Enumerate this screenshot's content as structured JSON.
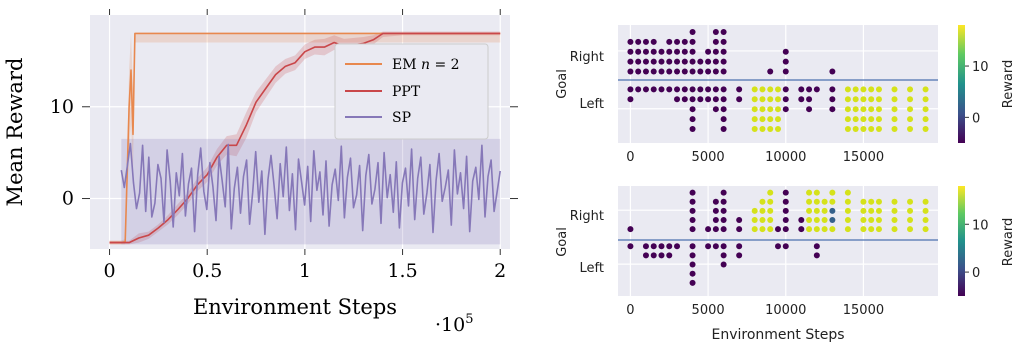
{
  "colors": {
    "panel_bg": "#eaeaf2",
    "grid": "#ffffff",
    "em": "#e8884e",
    "ppt": "#c9474a",
    "sp": "#8678b8",
    "divider": "#4c72b0",
    "viridis_low": "#440154",
    "viridis_mid": "#3b528b",
    "viridis_high": "#d5e21a"
  },
  "chart_data": [
    {
      "type": "line",
      "ylabel": "Mean Reward",
      "xlabel": "Environment Steps",
      "x_multiplier": "·10",
      "x_multiplier_exp": "5",
      "xlim": [
        -0.1,
        2.05
      ],
      "ylim": [
        -5.5,
        20
      ],
      "xticks": [
        0,
        0.5,
        1,
        1.5,
        2
      ],
      "xtick_labels": [
        "0",
        "0.5",
        "1",
        "1.5",
        "2"
      ],
      "yticks": [
        0,
        10
      ],
      "ytick_labels": [
        "0",
        "10"
      ],
      "grid": true,
      "legend_position": "center-right",
      "legend": {
        "em_prefix": "EM ",
        "em_var": "n",
        "em_suffix": " = 2",
        "ppt": "PPT",
        "sp": "SP"
      },
      "series": [
        {
          "name": "EM n = 2",
          "color": "#e8884e",
          "x": [
            0.0,
            0.06,
            0.08,
            0.1,
            0.11,
            0.12,
            0.13,
            0.14,
            0.15,
            2.0
          ],
          "y": [
            -4.8,
            -4.8,
            -4.7,
            10.0,
            14.0,
            7.0,
            18.0,
            18.0,
            18.0,
            18.0
          ],
          "band_low": [
            -5.0,
            -5.0,
            -5.0,
            5.0,
            8.0,
            3.0,
            17.0,
            17.0,
            17.0,
            17.0
          ],
          "band_high": [
            -4.6,
            -4.6,
            -4.4,
            14.0,
            18.0,
            12.0,
            18.0,
            18.0,
            18.0,
            18.0
          ]
        },
        {
          "name": "PPT",
          "color": "#c9474a",
          "x": [
            0.0,
            0.1,
            0.15,
            0.2,
            0.25,
            0.3,
            0.35,
            0.4,
            0.45,
            0.5,
            0.55,
            0.6,
            0.65,
            0.7,
            0.75,
            0.8,
            0.85,
            0.9,
            0.95,
            1.0,
            1.05,
            1.1,
            1.15,
            1.2,
            1.3,
            1.35,
            1.4,
            1.5,
            2.0
          ],
          "y": [
            -4.8,
            -4.8,
            -4.3,
            -4.0,
            -3.2,
            -2.3,
            -1.2,
            0.0,
            1.5,
            2.6,
            4.5,
            5.8,
            5.8,
            8.0,
            10.5,
            12.0,
            13.5,
            14.4,
            14.8,
            16.0,
            16.5,
            16.5,
            17.0,
            16.6,
            16.9,
            17.3,
            18.0,
            18.0,
            18.0
          ],
          "band_low": [
            -5.0,
            -5.0,
            -4.8,
            -4.4,
            -3.6,
            -2.8,
            -1.8,
            -0.6,
            0.8,
            1.8,
            3.6,
            4.8,
            4.6,
            6.6,
            9.4,
            11.0,
            12.6,
            13.6,
            14.0,
            15.2,
            15.7,
            15.6,
            16.2,
            15.8,
            16.2,
            16.8,
            17.6,
            17.8,
            17.8
          ],
          "band_high": [
            -4.6,
            -4.6,
            -3.8,
            -3.6,
            -2.8,
            -1.8,
            -0.6,
            0.6,
            2.2,
            3.4,
            5.4,
            6.8,
            7.0,
            9.4,
            11.6,
            13.0,
            14.4,
            15.2,
            15.6,
            16.8,
            17.3,
            17.4,
            17.8,
            17.4,
            17.6,
            17.8,
            18.2,
            18.2,
            18.2
          ]
        },
        {
          "name": "SP",
          "color": "#8678b8",
          "x_start": 0.06,
          "x_end": 2.0,
          "y": [
            3.1,
            1.2,
            3.6,
            6.0,
            1.7,
            -1.1,
            0.6,
            5.8,
            -1.4,
            4.5,
            -2.0,
            -0.5,
            3.7,
            2.2,
            -2.6,
            5.3,
            1.9,
            -3.1,
            2.8,
            0.3,
            4.9,
            -1.9,
            1.6,
            3.3,
            -3.6,
            2.6,
            5.5,
            0.8,
            -1.2,
            3.9,
            1.3,
            -2.4,
            4.6,
            2.0,
            -0.9,
            5.9,
            -3.3,
            1.1,
            3.4,
            -1.6,
            2.4,
            4.2,
            -2.8,
            0.7,
            5.1,
            -0.4,
            3.0,
            -3.9,
            2.1,
            4.7,
            1.4,
            -2.2,
            3.8,
            0.2,
            5.6,
            -1.3,
            2.7,
            -3.4,
            4.3,
            1.8,
            -0.7,
            3.5,
            -2.5,
            5.2,
            0.9,
            2.9,
            -1.8,
            4.1,
            -3.0,
            1.5,
            3.2,
            -0.2,
            5.7,
            -2.1,
            2.3,
            4.4,
            -1.0,
            0.4,
            3.6,
            -3.5,
            2.5,
            4.8,
            -0.6,
            1.0,
            3.9,
            -2.7,
            5.0,
            0.1,
            2.6,
            -1.5,
            4.0,
            -3.2,
            1.7,
            3.3,
            -0.8,
            5.4,
            -2.3,
            2.2,
            4.5,
            -1.7,
            0.6,
            3.7,
            -3.7,
            2.0,
            4.9,
            -0.3,
            1.2,
            3.1,
            -2.9,
            5.3,
            0.5,
            2.8,
            -1.1,
            4.6,
            -3.6,
            1.9,
            3.4,
            -0.1,
            5.8,
            -2.0,
            2.4,
            4.2,
            -1.4,
            0.8,
            3.0
          ],
          "band_low": -5.0,
          "band_high": 6.5
        }
      ]
    },
    {
      "type": "scatter",
      "ylabel": "Goal",
      "ytick_labels": [
        "Right",
        "Left"
      ],
      "xticks": [
        0,
        5000,
        10000,
        15000
      ],
      "xtick_labels": [
        "0",
        "5000",
        "10000",
        "15000"
      ],
      "xlim": [
        -800,
        19800
      ],
      "colorbar_label": "Reward",
      "colorbar_ticks": [
        0,
        10
      ],
      "colorbar_tick_labels": [
        "0",
        "10"
      ],
      "colorbar_range": [
        -5,
        18
      ],
      "grid": true,
      "columns": [
        {
          "x": 0,
          "right": [
            -5,
            -5,
            -5,
            -5
          ],
          "left": [
            -5,
            -5
          ]
        },
        {
          "x": 500,
          "right": [
            -5,
            -5,
            -5,
            -5
          ],
          "left": [
            -5
          ]
        },
        {
          "x": 1000,
          "right": [
            -5,
            -5,
            -5,
            -5
          ],
          "left": [
            -5
          ]
        },
        {
          "x": 1500,
          "right": [
            -5,
            -5,
            -5,
            -5
          ],
          "left": [
            -5
          ]
        },
        {
          "x": 2000,
          "right": [
            -5,
            -5,
            -5
          ],
          "left": [
            -5
          ]
        },
        {
          "x": 2500,
          "right": [
            -5,
            -5,
            -5,
            -5
          ],
          "left": [
            -5
          ]
        },
        {
          "x": 3000,
          "right": [
            -5,
            -5,
            -5,
            -5
          ],
          "left": [
            -5,
            -5
          ]
        },
        {
          "x": 3500,
          "right": [
            -5,
            -5,
            -5,
            -5
          ],
          "left": [
            -5,
            -5
          ]
        },
        {
          "x": 4000,
          "right": [
            -5,
            -5,
            -5,
            -5,
            -5
          ],
          "left": [
            -5,
            -5,
            -5,
            -5,
            -5
          ]
        },
        {
          "x": 4500,
          "right": [
            -5,
            -5
          ],
          "left": [
            -5,
            -5
          ]
        },
        {
          "x": 5000,
          "right": [
            -5,
            -5,
            -5
          ],
          "left": [
            -5,
            -5
          ]
        },
        {
          "x": 5500,
          "right": [
            -5,
            -5,
            -5,
            -5,
            -5
          ],
          "left": [
            -5,
            -5,
            -5
          ]
        },
        {
          "x": 6000,
          "right": [
            -5,
            -5,
            -5,
            -5,
            -5
          ],
          "left": [
            -5,
            -5,
            -5,
            -5,
            -5
          ]
        },
        {
          "x": 7000,
          "right": [],
          "left": [
            -5,
            -5
          ]
        },
        {
          "x": 8000,
          "right": [],
          "left": [
            18,
            18,
            18,
            18,
            18
          ]
        },
        {
          "x": 8500,
          "right": [],
          "left": [
            18,
            18,
            18,
            18,
            18
          ]
        },
        {
          "x": 9000,
          "right": [
            -5
          ],
          "left": [
            18,
            18,
            18,
            18,
            18
          ]
        },
        {
          "x": 9500,
          "right": [],
          "left": [
            18,
            18,
            18,
            18,
            18
          ]
        },
        {
          "x": 10000,
          "right": [
            -5,
            -5,
            -5
          ],
          "left": [
            -5,
            -5,
            -5
          ]
        },
        {
          "x": 11000,
          "right": [],
          "left": [
            -5,
            -5
          ]
        },
        {
          "x": 11500,
          "right": [],
          "left": [
            -5,
            -5,
            -5
          ]
        },
        {
          "x": 12000,
          "right": [],
          "left": [
            -5
          ]
        },
        {
          "x": 13000,
          "right": [
            -5
          ],
          "left": [
            -5,
            -5,
            -5
          ]
        },
        {
          "x": 14000,
          "right": [],
          "left": [
            18,
            18,
            18,
            18,
            18
          ]
        },
        {
          "x": 14500,
          "right": [],
          "left": [
            18,
            18,
            18,
            18,
            18
          ]
        },
        {
          "x": 15000,
          "right": [],
          "left": [
            18,
            18,
            18,
            18,
            18
          ]
        },
        {
          "x": 15500,
          "right": [],
          "left": [
            18,
            18,
            18,
            18,
            18
          ]
        },
        {
          "x": 16000,
          "right": [],
          "left": [
            18,
            18,
            18,
            18,
            18
          ]
        },
        {
          "x": 17000,
          "right": [],
          "left": [
            18,
            18,
            18,
            18,
            18
          ]
        },
        {
          "x": 18000,
          "right": [],
          "left": [
            18,
            18,
            18,
            18,
            18
          ]
        },
        {
          "x": 19000,
          "right": [],
          "left": [
            18,
            18,
            18,
            18,
            18
          ]
        }
      ]
    },
    {
      "type": "scatter",
      "ylabel": "Goal",
      "xlabel": "Environment Steps",
      "ytick_labels": [
        "Right",
        "Left"
      ],
      "xticks": [
        0,
        5000,
        10000,
        15000
      ],
      "xtick_labels": [
        "0",
        "5000",
        "10000",
        "15000"
      ],
      "xlim": [
        -800,
        19800
      ],
      "colorbar_label": "Reward",
      "colorbar_ticks": [
        0,
        10
      ],
      "colorbar_tick_labels": [
        "0",
        "10"
      ],
      "colorbar_range": [
        -5,
        18
      ],
      "grid": true,
      "columns": [
        {
          "x": 0,
          "right": [
            -5
          ],
          "left": [
            -5
          ]
        },
        {
          "x": 1000,
          "right": [],
          "left": [
            -5,
            -5
          ]
        },
        {
          "x": 1500,
          "right": [],
          "left": [
            -5,
            -5
          ]
        },
        {
          "x": 2000,
          "right": [],
          "left": [
            -5,
            -5
          ]
        },
        {
          "x": 2500,
          "right": [],
          "left": [
            -5,
            -5
          ]
        },
        {
          "x": 3000,
          "right": [],
          "left": [
            -5
          ]
        },
        {
          "x": 4000,
          "right": [
            -5,
            -5,
            -5,
            -5,
            -5
          ],
          "left": [
            -5,
            -5,
            -5,
            -5,
            -5
          ]
        },
        {
          "x": 5000,
          "right": [
            -5
          ],
          "left": [
            -5
          ]
        },
        {
          "x": 5500,
          "right": [
            -5,
            -5,
            -5,
            -5
          ],
          "left": [
            -5
          ]
        },
        {
          "x": 6000,
          "right": [
            -5,
            -5,
            -5,
            -5,
            -5
          ],
          "left": [
            -5,
            -5,
            -5
          ]
        },
        {
          "x": 7000,
          "right": [
            -5,
            -5
          ],
          "left": [
            -5,
            -5
          ]
        },
        {
          "x": 8000,
          "right": [
            18,
            18,
            18
          ],
          "left": []
        },
        {
          "x": 8500,
          "right": [
            18,
            18,
            18,
            18
          ],
          "left": []
        },
        {
          "x": 9000,
          "right": [
            18,
            18,
            18,
            18,
            18
          ],
          "left": []
        },
        {
          "x": 9500,
          "right": [
            -5
          ],
          "left": [
            -5
          ]
        },
        {
          "x": 10000,
          "right": [
            -5,
            -5,
            -5,
            -5,
            -5
          ],
          "left": [
            -5
          ]
        },
        {
          "x": 11000,
          "right": [
            -5,
            -5
          ],
          "left": []
        },
        {
          "x": 11500,
          "right": [
            18,
            18,
            18,
            18,
            18
          ],
          "left": []
        },
        {
          "x": 12000,
          "right": [
            18,
            18,
            18,
            18,
            18
          ],
          "left": [
            -5,
            -5
          ]
        },
        {
          "x": 12500,
          "right": [
            18,
            18,
            18,
            18
          ],
          "left": []
        },
        {
          "x": 13000,
          "right": [
            18,
            18,
            2,
            2,
            18
          ],
          "left": []
        },
        {
          "x": 14000,
          "right": [
            18,
            18,
            18,
            18,
            18
          ],
          "left": []
        },
        {
          "x": 15000,
          "right": [
            18,
            18,
            18,
            18
          ],
          "left": []
        },
        {
          "x": 15500,
          "right": [
            18,
            18,
            18,
            18
          ],
          "left": []
        },
        {
          "x": 16000,
          "right": [
            18,
            18,
            18,
            18
          ],
          "left": []
        },
        {
          "x": 17000,
          "right": [
            18,
            18,
            18,
            18
          ],
          "left": []
        },
        {
          "x": 18000,
          "right": [
            18,
            18,
            18,
            18
          ],
          "left": []
        },
        {
          "x": 19000,
          "right": [
            18,
            18,
            18,
            18
          ],
          "left": []
        }
      ]
    }
  ]
}
